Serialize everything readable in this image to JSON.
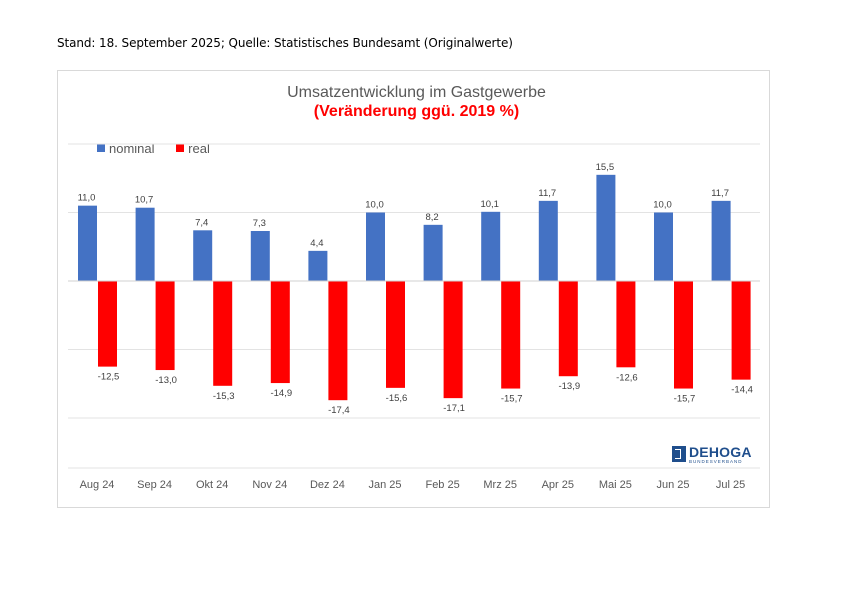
{
  "header": {
    "note": "Stand: 18. September 2025; Quelle: Statistisches Bundesamt (Originalwerte)"
  },
  "chart": {
    "title": "Umsatzentwicklung im Gastgewerbe",
    "subtitle": "(Veränderung ggü. 2019 %)"
  },
  "logo": {
    "name": "DEHOGA",
    "subtitle": "BUNDESVERBAND"
  },
  "colors": {
    "nominal": "#4472c4",
    "real": "#ff0000"
  },
  "chart_data": {
    "type": "bar",
    "title": "Umsatzentwicklung im Gastgewerbe",
    "subtitle": "(Veränderung ggü. 2019 %)",
    "categories": [
      "Aug 24",
      "Sep 24",
      "Okt 24",
      "Nov 24",
      "Dez 24",
      "Jan 25",
      "Feb 25",
      "Mrz 25",
      "Apr 25",
      "Mai 25",
      "Jun 25",
      "Jul 25"
    ],
    "series": [
      {
        "name": "nominal",
        "color": "#4472c4",
        "values": [
          11.0,
          10.7,
          7.4,
          7.3,
          4.4,
          10.0,
          8.2,
          10.1,
          11.7,
          15.5,
          10.0,
          11.7
        ],
        "labels": [
          "11,0",
          "10,7",
          "7,4",
          "7,3",
          "4,4",
          "10,0",
          "8,2",
          "10,1",
          "11,7",
          "15,5",
          "10,0",
          "11,7"
        ]
      },
      {
        "name": "real",
        "color": "#ff0000",
        "values": [
          -12.5,
          -13.0,
          -15.3,
          -14.9,
          -17.4,
          -15.6,
          -17.1,
          -15.7,
          -13.9,
          -12.6,
          -15.7,
          -14.4
        ],
        "labels": [
          "-12,5",
          "-13,0",
          "-15,3",
          "-14,9",
          "-17,4",
          "-15,6",
          "-17,1",
          "-15,7",
          "-13,9",
          "-12,6",
          "-15,7",
          "-14,4"
        ]
      }
    ],
    "xlabel": "",
    "ylabel": "",
    "ylim": [
      -20,
      20
    ],
    "grid": true,
    "legend": "top-left"
  }
}
